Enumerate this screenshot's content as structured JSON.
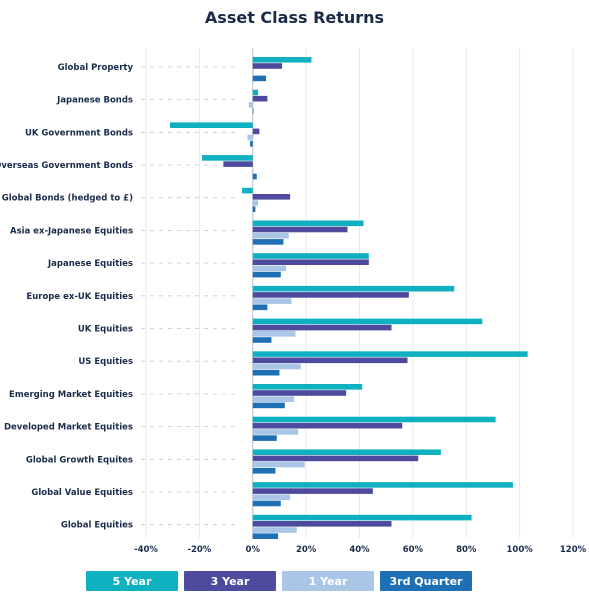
{
  "chart_data": {
    "type": "bar",
    "orientation": "horizontal",
    "title": "Asset Class Returns",
    "xlabel": "",
    "ylabel": "",
    "xlim": [
      -40,
      120
    ],
    "x_ticks": [
      "-40%",
      "-20%",
      "0%",
      "20%",
      "40%",
      "60%",
      "80%",
      "100%",
      "120%"
    ],
    "grid": true,
    "legend_position": "bottom",
    "categories": [
      "Global Property",
      "Japanese Bonds",
      "UK Government Bonds",
      "Overseas Government Bonds",
      "Global Bonds (hedged to £)",
      "Asia ex-Japanese Equities",
      "Japanese Equities",
      "Europe ex-UK Equities",
      "UK Equities",
      "US Equities",
      "Emerging Market Equities",
      "Developed Market Equities",
      "Global Growth Equites",
      "Global Value Equities",
      "Global Equities"
    ],
    "series": [
      {
        "name": "5 Year",
        "color": "#0fb1c0",
        "values": [
          22,
          2,
          -31,
          -19,
          -4,
          41.5,
          43.5,
          75.5,
          86,
          103,
          41,
          91,
          70.5,
          97.5,
          82
        ]
      },
      {
        "name": "3 Year",
        "color": "#4e4a9e",
        "values": [
          11,
          5.5,
          2.5,
          -11,
          14,
          35.5,
          43.5,
          58.5,
          52,
          58,
          35,
          56,
          62,
          45,
          52
        ]
      },
      {
        "name": "1 Year",
        "color": "#a9c6e6",
        "values": [
          0,
          -1.5,
          -2,
          0,
          2,
          13.5,
          12.5,
          14.5,
          16,
          18,
          15.5,
          17,
          19.5,
          14,
          16.5
        ]
      },
      {
        "name": "3rd Quarter",
        "color": "#1e6fb4",
        "values": [
          5,
          0,
          -1,
          1.5,
          1,
          11.5,
          10.5,
          5.5,
          7,
          10,
          12,
          9,
          8.5,
          10.5,
          9.5
        ]
      }
    ]
  }
}
